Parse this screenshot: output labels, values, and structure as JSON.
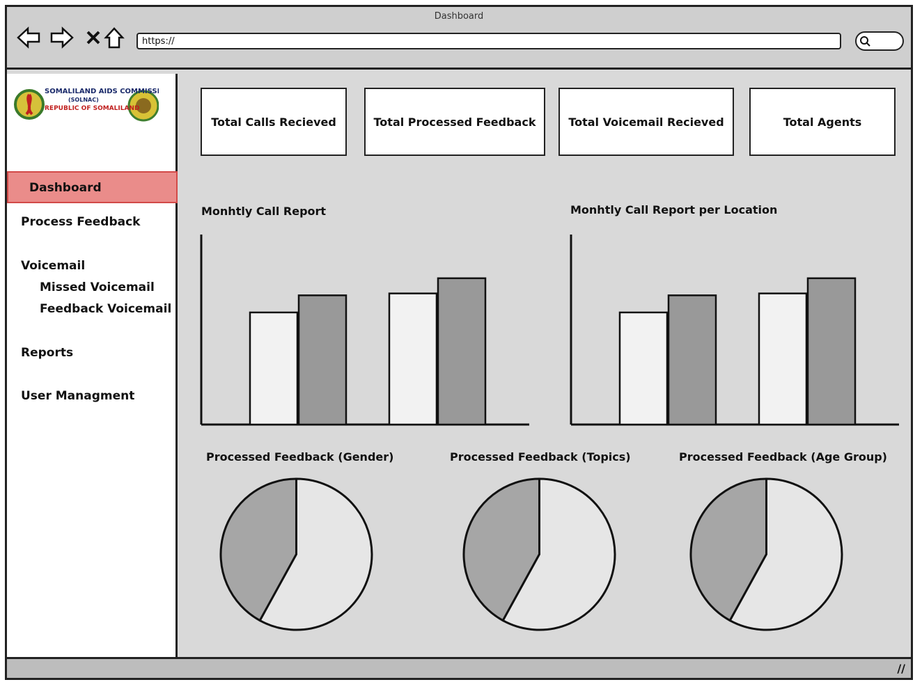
{
  "window": {
    "title": "Dashboard"
  },
  "browser": {
    "url": "https://",
    "icons": [
      "back-arrow-icon",
      "forward-arrow-icon",
      "close-icon",
      "home-icon",
      "search-icon"
    ]
  },
  "logo": {
    "line1": "SOMALILAND AIDS COMMISSION",
    "line2": "(SOLNAC)",
    "line3": "REPUBLIC OF SOMALILAND"
  },
  "sidebar": {
    "items": [
      {
        "label": "Dashboard",
        "active": true
      },
      {
        "label": "Process Feedback"
      },
      {
        "label": "Voicemail"
      },
      {
        "label": "Missed Voicemail",
        "sub": true
      },
      {
        "label": "Feedback Voicemail",
        "sub": true
      },
      {
        "label": "Reports"
      },
      {
        "label": "User Managment"
      }
    ]
  },
  "kpis": [
    {
      "label": "Total Calls Recieved"
    },
    {
      "label": "Total Processed Feedback"
    },
    {
      "label": "Total Voicemail Recieved"
    },
    {
      "label": "Total Agents"
    }
  ],
  "colors": {
    "active_bg": "#ea8c8a",
    "active_border": "#d24a48",
    "bar_light": "#f2f2f2",
    "bar_dark": "#999999",
    "pie_dark": "#a6a6a6",
    "pie_light": "#e6e6e6"
  },
  "chart_data": [
    {
      "type": "bar",
      "title": "Monhtly Call Report",
      "categories": [
        "",
        ""
      ],
      "series": [
        {
          "values": [
            59,
            68
          ]
        },
        {
          "values": [
            69,
            77
          ]
        }
      ],
      "ylim": [
        0,
        100
      ],
      "grid": false
    },
    {
      "type": "bar",
      "title": "Monhtly Call Report per Location",
      "categories": [
        "",
        ""
      ],
      "series": [
        {
          "values": [
            59,
            68
          ]
        },
        {
          "values": [
            69,
            77
          ]
        }
      ],
      "ylim": [
        0,
        100
      ],
      "grid": false
    },
    {
      "type": "pie",
      "title": "Processed Feedback (Gender)",
      "values": [
        42,
        58
      ]
    },
    {
      "type": "pie",
      "title": "Processed Feedback (Topics)",
      "values": [
        42,
        58
      ]
    },
    {
      "type": "pie",
      "title": "Processed Feedback (Age Group)",
      "values": [
        42,
        58
      ]
    }
  ]
}
